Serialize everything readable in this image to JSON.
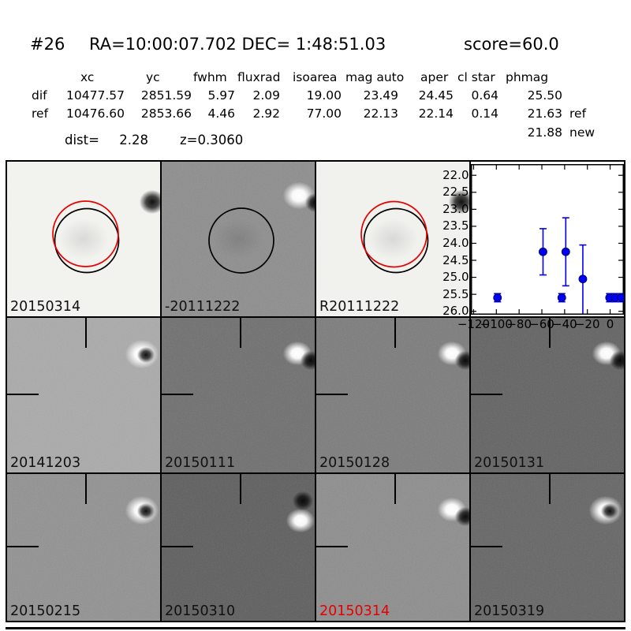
{
  "header": {
    "id": "#26",
    "coords": "RA=10:00:07.702 DEC= 1:48:51.03",
    "score": "score=60.0"
  },
  "table": {
    "columns": [
      "xc",
      "yc",
      "fwhm",
      "fluxrad",
      "isoarea",
      "mag auto",
      "aper",
      "cl star",
      "phmag"
    ],
    "rows": [
      {
        "name": "dif",
        "values": [
          "10477.57",
          "2851.59",
          "5.97",
          "2.09",
          "19.00",
          "23.49",
          "24.45",
          "0.64",
          "25.50"
        ]
      },
      {
        "name": "ref",
        "values": [
          "10476.60",
          "2853.66",
          "4.46",
          "2.92",
          "77.00",
          "22.13",
          "22.14",
          "0.14",
          "21.63"
        ],
        "phmag_suffix": "ref"
      }
    ],
    "extra_phmag": {
      "value": "21.88",
      "suffix": "new"
    },
    "dist_label": "dist=",
    "dist_value": "2.28",
    "z_label": "z=0.3060"
  },
  "panels": [
    {
      "label": "20150314",
      "bg": "#f1f1ee"
    },
    {
      "label": "-20111222",
      "bg": "#8c8c8c"
    },
    {
      "label": "R20111222",
      "bg": "#f0f0ed"
    },
    {
      "label": "20141203",
      "bg": "#a7a7a7"
    },
    {
      "label": "20150111",
      "bg": "#6f6f6f"
    },
    {
      "label": "20150128",
      "bg": "#7b7b7b"
    },
    {
      "label": "20150131",
      "bg": "#636363"
    },
    {
      "label": "20150215",
      "bg": "#909090"
    },
    {
      "label": "20150310",
      "bg": "#5f5f5f"
    },
    {
      "label": "20150314",
      "bg": "#8c8c8c",
      "highlight": true
    },
    {
      "label": "20150319",
      "bg": "#666666"
    }
  ],
  "colors": {
    "marker_blue": "#0000f2",
    "accent_red": "#e60000",
    "frame_black": "#000000"
  },
  "chart_data": {
    "type": "scatter",
    "title": "",
    "xlabel": "",
    "ylabel": "",
    "description": "light curve: magnitude vs epoch (days), inverted magnitude axis, blue points with error bars",
    "x": [
      -99,
      -59,
      -42.5,
      -39,
      -24,
      -0.5,
      4.5,
      10
    ],
    "y": [
      25.6,
      24.25,
      25.6,
      24.25,
      25.05,
      25.6,
      25.6,
      25.6
    ],
    "err_up": [
      0.12,
      0.68,
      0.12,
      1.0,
      1.0,
      0.12,
      0.12,
      0.12
    ],
    "err_down": [
      0.12,
      0.68,
      0.12,
      1.0,
      1.35,
      0.12,
      0.12,
      0.12
    ],
    "xticks": [
      -120,
      -100,
      -80,
      -60,
      -40,
      -20,
      0
    ],
    "xtick_labels": [
      "−120",
      "−100",
      "−80",
      "−60",
      "−40",
      "−20",
      "0"
    ],
    "yticks": [
      22.0,
      22.5,
      23.0,
      23.5,
      24.0,
      24.5,
      25.0,
      25.5,
      26.0
    ],
    "ytick_labels": [
      "22.0",
      "22.5",
      "23.0",
      "23.5",
      "24.0",
      "24.5",
      "25.0",
      "25.5",
      "26.0"
    ],
    "xlim": [
      -122.4,
      12.1
    ],
    "ylim": [
      26.1,
      21.67
    ],
    "grid": false,
    "legend": false,
    "marker_color": "#0000f2"
  }
}
